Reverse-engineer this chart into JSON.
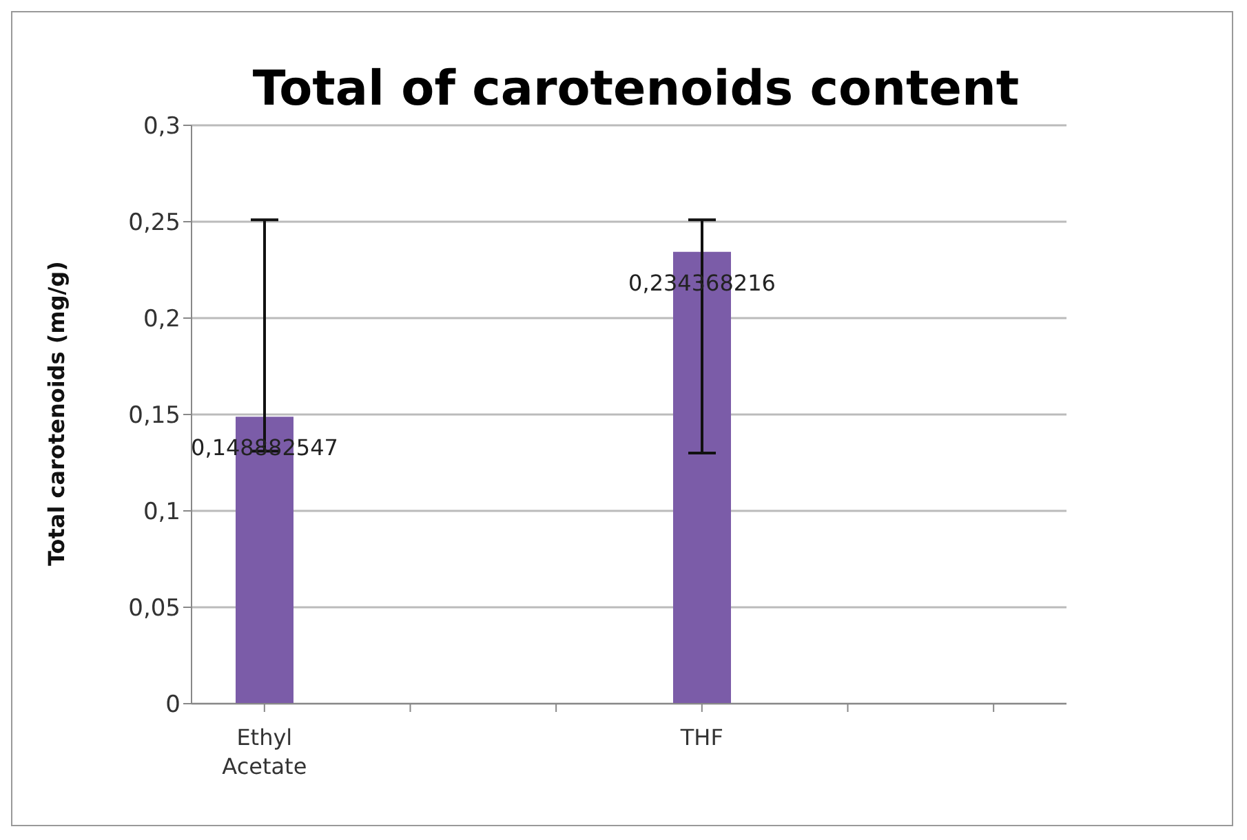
{
  "chart_data": {
    "type": "bar",
    "title": "Total of carotenoids content",
    "ylabel": "Total carotenoids (mg/g)",
    "categories": [
      "Ethyl Acetate",
      null,
      null,
      "THF",
      null,
      null
    ],
    "values": [
      0.148882547,
      null,
      null,
      0.234368216,
      null,
      null
    ],
    "value_labels": [
      "0,148882547",
      null,
      null,
      "0,234368216",
      null,
      null
    ],
    "errors": [
      [
        0.131,
        0.251
      ],
      null,
      null,
      [
        0.13,
        0.251
      ],
      null,
      null
    ],
    "color": "#7b5ca8",
    "ylim": [
      0,
      0.3
    ],
    "yticks": [
      0,
      {
        "value": 0.05,
        "label": "0,05"
      },
      {
        "value": 0.1,
        "label": "0,1"
      },
      {
        "value": 0.15,
        "label": "0,15"
      },
      {
        "value": 0.2,
        "label": "0,2"
      },
      {
        "value": 0.25,
        "label": "0,25"
      },
      {
        "value": 0.3,
        "label": "0,3"
      }
    ],
    "grid": "y",
    "legend": false
  }
}
